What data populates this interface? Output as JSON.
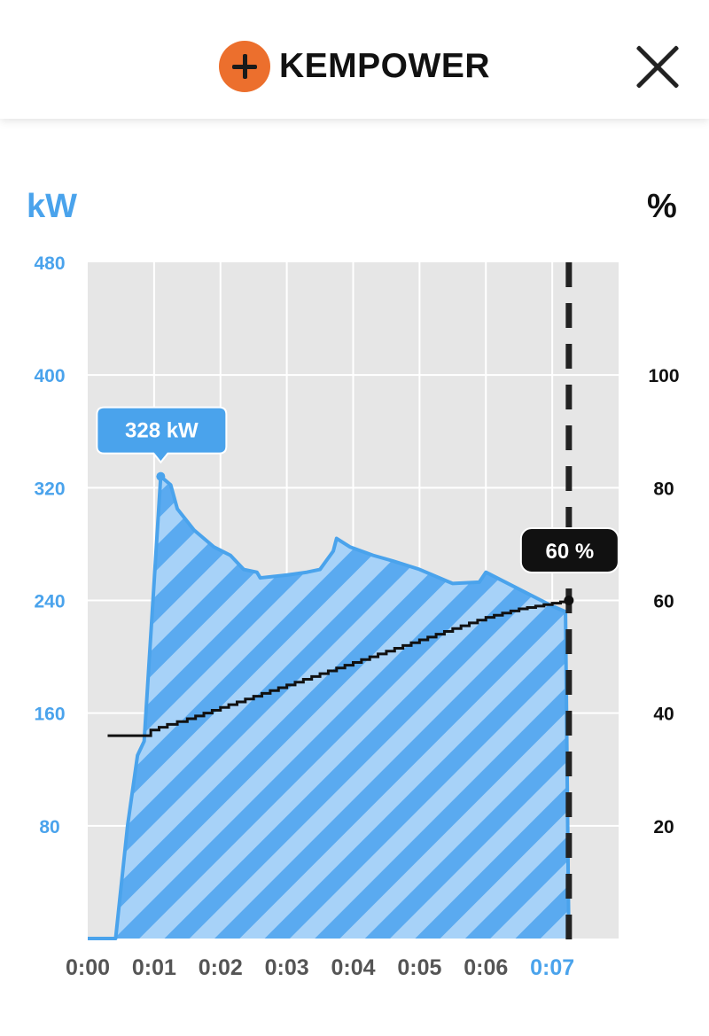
{
  "header": {
    "brand": "KEMPOWER",
    "logo_icon": "plus-circle-icon",
    "close_icon": "close-icon"
  },
  "units": {
    "left": "kW",
    "right": "%"
  },
  "colors": {
    "power": "#4aa3ec",
    "power_fill": "#5aaaf0",
    "soc": "#111111",
    "plot_bg": "#e6e6e6",
    "brand": "#ec6f2d"
  },
  "chart_data": {
    "type": "area",
    "x_ticks": [
      "0:00",
      "0:01",
      "0:02",
      "0:03",
      "0:04",
      "0:05",
      "0:06",
      "0:07"
    ],
    "x_range_minutes": [
      0,
      8
    ],
    "current_time_minutes": 7.25,
    "grid": true,
    "y_left": {
      "label": "kW",
      "ticks": [
        80,
        160,
        240,
        320,
        400,
        480
      ],
      "range": [
        0,
        480
      ]
    },
    "y_right": {
      "label": "%",
      "ticks": [
        20,
        40,
        60,
        80,
        100
      ],
      "range": [
        0,
        120
      ]
    },
    "series": [
      {
        "name": "kW",
        "axis": "left",
        "points": [
          [
            0,
            0
          ],
          [
            0.42,
            0
          ],
          [
            0.6,
            80
          ],
          [
            0.75,
            130
          ],
          [
            0.85,
            140
          ],
          [
            1.1,
            328
          ],
          [
            1.25,
            322
          ],
          [
            1.35,
            305
          ],
          [
            1.6,
            290
          ],
          [
            1.9,
            278
          ],
          [
            2.15,
            272
          ],
          [
            2.35,
            262
          ],
          [
            2.55,
            260
          ],
          [
            2.6,
            256
          ],
          [
            3.0,
            258
          ],
          [
            3.3,
            260
          ],
          [
            3.5,
            262
          ],
          [
            3.7,
            275
          ],
          [
            3.75,
            284
          ],
          [
            3.95,
            278
          ],
          [
            4.3,
            272
          ],
          [
            4.6,
            268
          ],
          [
            5.0,
            262
          ],
          [
            5.5,
            252
          ],
          [
            5.9,
            253
          ],
          [
            6.0,
            260
          ],
          [
            6.5,
            248
          ],
          [
            7.0,
            236
          ],
          [
            7.2,
            232
          ],
          [
            7.25,
            0
          ]
        ],
        "callout": "328 kW"
      },
      {
        "name": "%",
        "axis": "right",
        "points": [
          [
            0.3,
            36
          ],
          [
            0.85,
            36
          ],
          [
            0.95,
            37
          ],
          [
            1.2,
            38
          ],
          [
            1.5,
            39
          ],
          [
            2.0,
            41
          ],
          [
            2.5,
            43
          ],
          [
            3.0,
            45
          ],
          [
            3.5,
            47
          ],
          [
            4.0,
            49
          ],
          [
            4.5,
            51
          ],
          [
            5.0,
            53
          ],
          [
            5.5,
            55
          ],
          [
            6.0,
            57
          ],
          [
            6.5,
            58.5
          ],
          [
            7.25,
            60
          ]
        ],
        "callout": "60 %"
      }
    ]
  }
}
